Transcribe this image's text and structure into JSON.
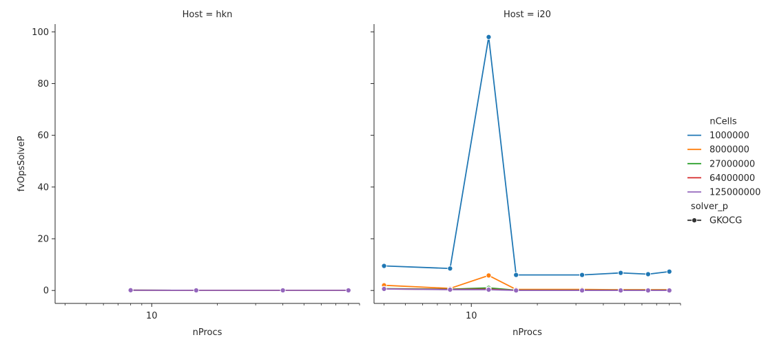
{
  "chart_data": {
    "type": "line",
    "facet_label": "Host",
    "x_scale": "log",
    "xlim": [
      3.6,
      90
    ],
    "ylim": [
      -5,
      103
    ],
    "xlabel": "nProcs",
    "ylabel": "fvOpsSolveP",
    "x_ticks": [
      10
    ],
    "x_tick_labels": [
      "10"
    ],
    "y_ticks": [
      0,
      20,
      40,
      60,
      80,
      100
    ],
    "y_tick_labels": [
      "0",
      "20",
      "40",
      "60",
      "80",
      "100"
    ],
    "legend": {
      "placement": "right",
      "hue_title": "nCells",
      "hue_entries": [
        "1000000",
        "8000000",
        "27000000",
        "64000000",
        "125000000"
      ],
      "style_title": "solver_p",
      "style_entries": [
        "GKOCG"
      ]
    },
    "colors": {
      "1000000": "#1f77b4",
      "8000000": "#ff7f0e",
      "27000000": "#2ca02c",
      "64000000": "#d62728",
      "125000000": "#9467bd"
    },
    "panels": [
      {
        "title": "Host = hkn",
        "series": [
          {
            "name": "1000000",
            "x": [
              8,
              16,
              40,
              80
            ],
            "y": [
              0.1,
              0.05,
              0.05,
              0.05
            ]
          },
          {
            "name": "8000000",
            "x": [
              8,
              16,
              40,
              80
            ],
            "y": [
              0.1,
              0.05,
              0.05,
              0.05
            ]
          },
          {
            "name": "27000000",
            "x": [
              8,
              16,
              40,
              80
            ],
            "y": [
              0.1,
              0.05,
              0.05,
              0.05
            ]
          },
          {
            "name": "64000000",
            "x": [
              8,
              16,
              40,
              80
            ],
            "y": [
              0.1,
              0.05,
              0.05,
              0.05
            ]
          },
          {
            "name": "125000000",
            "x": [
              8,
              16,
              40,
              80
            ],
            "y": [
              0.1,
              0.05,
              0.05,
              0.05
            ]
          }
        ]
      },
      {
        "title": "Host = i20",
        "series": [
          {
            "name": "1000000",
            "x": [
              4,
              8,
              12,
              16,
              32,
              48,
              64,
              80
            ],
            "y": [
              9.5,
              8.5,
              98,
              6,
              6,
              6.8,
              6.3,
              7.3
            ]
          },
          {
            "name": "8000000",
            "x": [
              4,
              8,
              12,
              16,
              32,
              48,
              64,
              80
            ],
            "y": [
              2,
              0.8,
              5.8,
              0.4,
              0.4,
              0.3,
              0.3,
              0.3
            ]
          },
          {
            "name": "27000000",
            "x": [
              4,
              8,
              12,
              16,
              32,
              48,
              64,
              80
            ],
            "y": [
              0.7,
              0.5,
              1.0,
              0.1,
              0.1,
              0.1,
              0.1,
              0.1
            ]
          },
          {
            "name": "64000000",
            "x": [
              4,
              8,
              12,
              16,
              32,
              48,
              64,
              80
            ],
            "y": [
              0.6,
              0.4,
              0.5,
              0.05,
              0.05,
              0.05,
              0.05,
              0.05
            ]
          },
          {
            "name": "125000000",
            "x": [
              4,
              8,
              12,
              16,
              32,
              48,
              64,
              80
            ],
            "y": [
              0.6,
              0.3,
              0.3,
              0.03,
              0.03,
              0.03,
              0.03,
              0.03
            ]
          }
        ]
      }
    ]
  }
}
